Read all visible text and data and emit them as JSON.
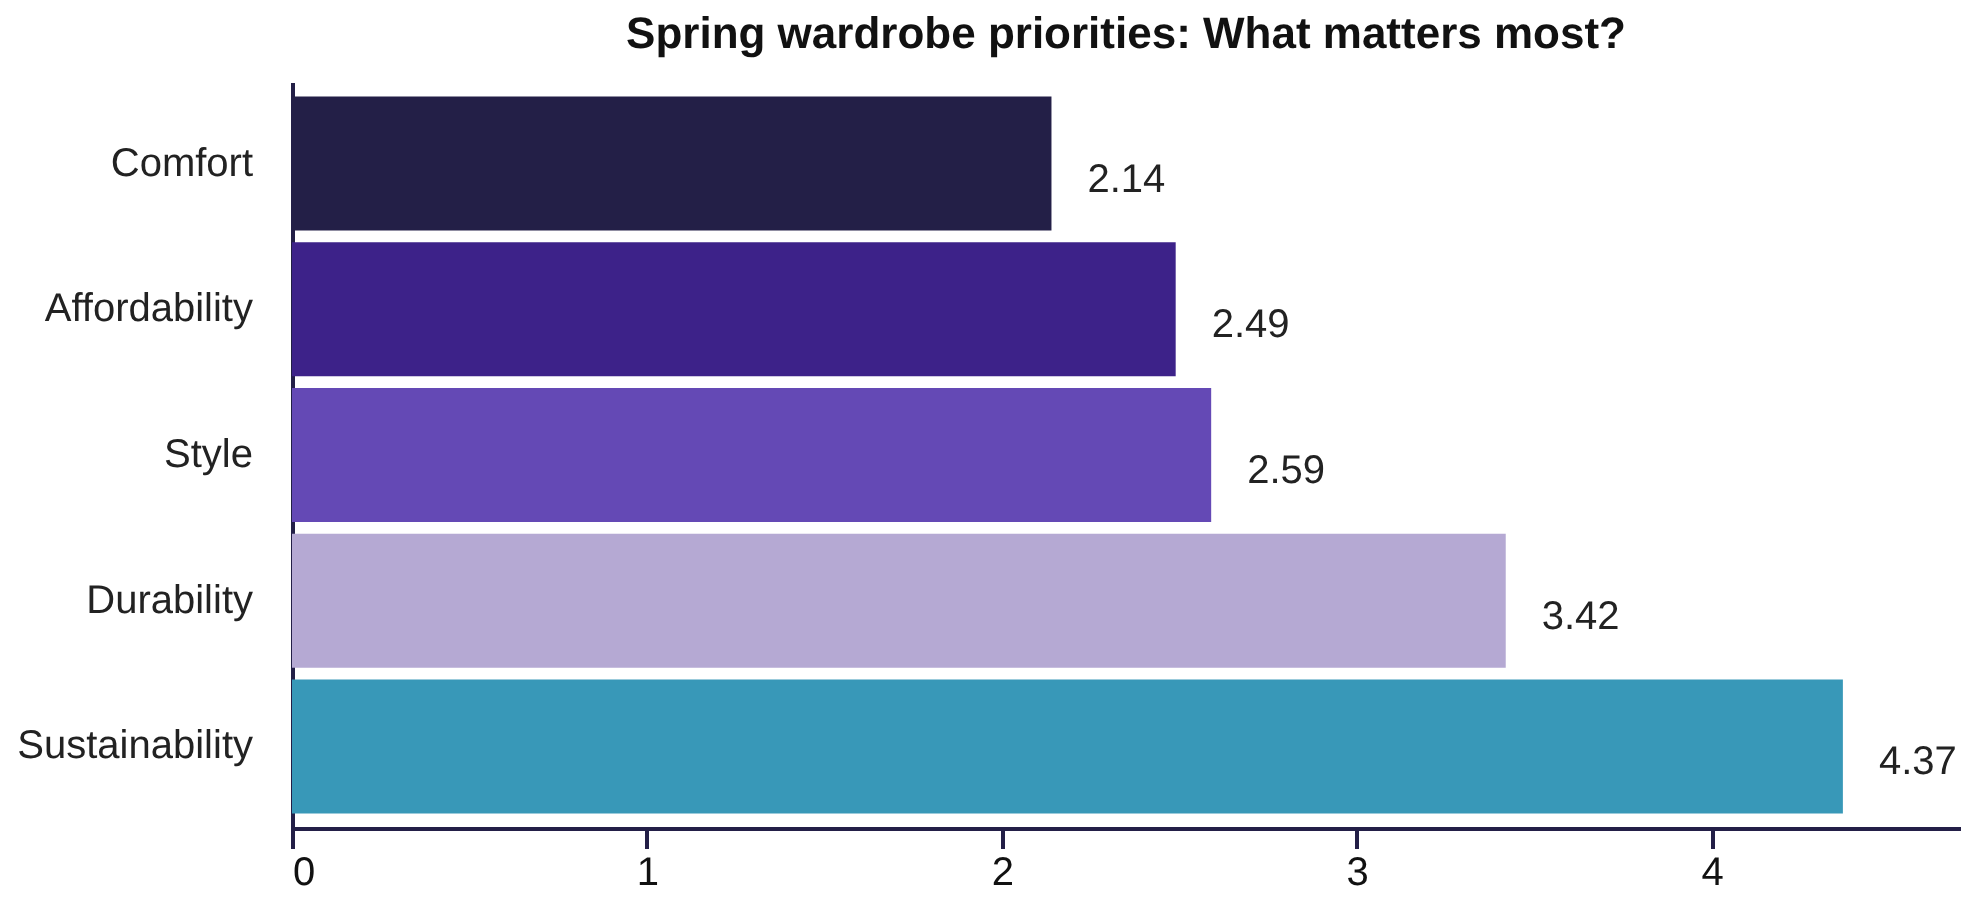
{
  "chart_data": {
    "type": "bar",
    "orientation": "horizontal",
    "title": "Spring wardrobe priorities: What matters most?",
    "categories": [
      "Comfort",
      "Affordability",
      "Style",
      "Durability",
      "Sustainability"
    ],
    "values": [
      2.14,
      2.49,
      2.59,
      3.42,
      4.37
    ],
    "colors": [
      "#231f47",
      "#3d2289",
      "#6449b5",
      "#b5a9d3",
      "#3898b8"
    ],
    "xlim": [
      0,
      4.7
    ],
    "xticks": [
      0,
      1,
      2,
      3,
      4
    ],
    "data_labels": true
  }
}
